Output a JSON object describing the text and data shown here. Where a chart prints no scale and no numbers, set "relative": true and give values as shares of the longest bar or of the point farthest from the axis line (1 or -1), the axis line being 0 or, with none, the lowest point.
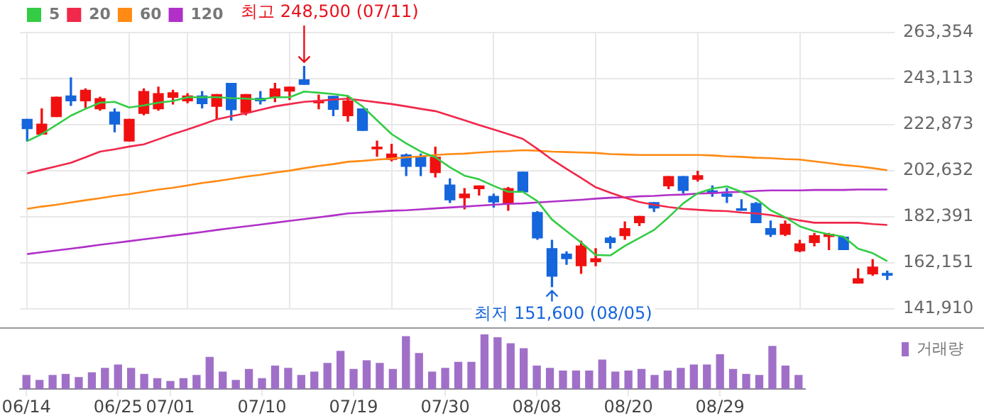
{
  "chart_data": [
    {
      "type": "candlestick",
      "ohlc": [
        [
          225200,
          225200,
          215600,
          221100
        ],
        [
          218700,
          229800,
          218700,
          223100
        ],
        [
          226400,
          234900,
          226400,
          234900
        ],
        [
          235500,
          243400,
          231300,
          233300
        ],
        [
          233300,
          238600,
          230400,
          238000
        ],
        [
          229800,
          234900,
          229200,
          234300
        ],
        [
          228400,
          229800,
          219700,
          223100
        ],
        [
          215600,
          225200,
          215600,
          225200
        ],
        [
          227800,
          238600,
          227200,
          237400
        ],
        [
          229800,
          239400,
          229200,
          236500
        ],
        [
          234900,
          238000,
          231900,
          236900
        ],
        [
          233300,
          236500,
          232500,
          235500
        ],
        [
          235500,
          237400,
          230200,
          232100
        ],
        [
          230900,
          236100,
          225200,
          236100
        ],
        [
          241000,
          241000,
          224800,
          229400
        ],
        [
          228200,
          236100,
          227200,
          236100
        ],
        [
          234500,
          237400,
          231900,
          233300
        ],
        [
          234900,
          241000,
          232900,
          238600
        ],
        [
          237600,
          239400,
          233900,
          239400
        ],
        [
          242600,
          248500,
          240600,
          240600
        ],
        [
          232500,
          235900,
          229800,
          233300
        ],
        [
          235300,
          235300,
          226800,
          229600
        ],
        [
          226800,
          235300,
          224400,
          233300
        ],
        [
          229800,
          229800,
          220300,
          220300
        ],
        [
          212200,
          215600,
          208900,
          213000
        ],
        [
          207500,
          214200,
          206900,
          209900
        ],
        [
          209500,
          209900,
          200400,
          204500
        ],
        [
          208900,
          209900,
          200400,
          204500
        ],
        [
          201800,
          213000,
          199800,
          208500
        ],
        [
          196300,
          199000,
          188600,
          189800
        ],
        [
          190700,
          194700,
          185800,
          192300
        ],
        [
          194700,
          195900,
          191900,
          195900
        ],
        [
          191300,
          192300,
          186600,
          188800
        ],
        [
          188200,
          195300,
          185200,
          194700
        ],
        [
          202000,
          202000,
          193300,
          193300
        ],
        [
          184200,
          184600,
          172400,
          173000
        ],
        [
          168300,
          172000,
          151600,
          156200
        ],
        [
          165900,
          166900,
          161400,
          163900
        ],
        [
          160800,
          171600,
          157400,
          169500
        ],
        [
          162600,
          168300,
          160800,
          163900
        ],
        [
          173000,
          173600,
          168500,
          171000
        ],
        [
          174000,
          180100,
          172400,
          177100
        ],
        [
          179700,
          182500,
          178500,
          182500
        ],
        [
          188600,
          188600,
          184600,
          186200
        ],
        [
          195900,
          200000,
          194700,
          200000
        ],
        [
          200000,
          200000,
          192700,
          193900
        ],
        [
          198800,
          202400,
          198000,
          200400
        ],
        [
          193700,
          195900,
          191300,
          192700
        ],
        [
          192300,
          194700,
          188600,
          191300
        ],
        [
          185800,
          189800,
          185200,
          185200
        ],
        [
          188200,
          188600,
          179700,
          179700
        ],
        [
          177100,
          180500,
          173600,
          174600
        ],
        [
          174600,
          180500,
          174000,
          179100
        ],
        [
          167300,
          172000,
          166900,
          170400
        ],
        [
          171000,
          175000,
          169500,
          174000
        ],
        [
          173600,
          175000,
          167900,
          174600
        ],
        [
          173400,
          173400,
          167900,
          167900
        ],
        [
          153100,
          159400,
          153100,
          155100
        ],
        [
          157200,
          163500,
          156600,
          160200
        ],
        [
          157400,
          158400,
          154700,
          156600
        ]
      ],
      "colors": [
        "#1565dc",
        "#f01010",
        "#f01010",
        "#1565dc",
        "#f01010",
        "#f01010",
        "#1565dc",
        "#f01010",
        "#f01010",
        "#f01010",
        "#f01010",
        "#f01010",
        "#1565dc",
        "#f01010",
        "#1565dc",
        "#f01010",
        "#1565dc",
        "#f01010",
        "#f01010",
        "#1565dc",
        "#f01010",
        "#1565dc",
        "#f01010",
        "#1565dc",
        "#f01010",
        "#f01010",
        "#1565dc",
        "#1565dc",
        "#f01010",
        "#1565dc",
        "#f01010",
        "#f01010",
        "#1565dc",
        "#f01010",
        "#1565dc",
        "#1565dc",
        "#1565dc",
        "#1565dc",
        "#f01010",
        "#f01010",
        "#1565dc",
        "#f01010",
        "#f01010",
        "#1565dc",
        "#f01010",
        "#1565dc",
        "#f01010",
        "#1565dc",
        "#1565dc",
        "#1565dc",
        "#1565dc",
        "#1565dc",
        "#f01010",
        "#f01010",
        "#f01010",
        "#f01010",
        "#1565dc",
        "#f01010",
        "#f01010",
        "#1565dc"
      ],
      "series": [
        {
          "name": "5",
          "type": "line",
          "color": "#33cc44",
          "values": [
            215600,
            218700,
            222700,
            226800,
            229800,
            232500,
            232900,
            230400,
            231300,
            232500,
            233300,
            234900,
            234900,
            234900,
            234500,
            234300,
            233900,
            234900,
            234900,
            237400,
            236900,
            236300,
            235500,
            230900,
            224800,
            218700,
            214600,
            211000,
            208500,
            204100,
            200400,
            198800,
            195900,
            193300,
            193300,
            189200,
            181100,
            176000,
            171000,
            165500,
            165300,
            169500,
            173000,
            176500,
            182100,
            188200,
            192700,
            194700,
            195700,
            193300,
            190300,
            185200,
            182100,
            178100,
            176000,
            174600,
            173600,
            168300,
            166300,
            162800
          ]
        },
        {
          "name": "20",
          "type": "line",
          "color": "#f0284a",
          "values": [
            201400,
            203000,
            204500,
            206100,
            208500,
            211000,
            212000,
            213200,
            214200,
            216400,
            218700,
            220700,
            222900,
            225200,
            226600,
            227800,
            229400,
            230900,
            231900,
            232900,
            233300,
            233900,
            234300,
            233500,
            232700,
            231900,
            230900,
            229800,
            228800,
            226800,
            224800,
            222700,
            220700,
            218700,
            216600,
            212200,
            207500,
            203400,
            199400,
            195300,
            192900,
            190700,
            188800,
            187600,
            186600,
            185800,
            185400,
            185000,
            184800,
            184200,
            183800,
            183100,
            181900,
            180700,
            179700,
            179700,
            179700,
            179700,
            179100,
            178700
          ]
        },
        {
          "name": "60",
          "type": "line",
          "color": "#ff8a14",
          "values": [
            185800,
            186800,
            187600,
            188600,
            189600,
            190500,
            191500,
            192300,
            193300,
            194300,
            195100,
            196100,
            197200,
            198000,
            199000,
            200000,
            200800,
            201800,
            202600,
            203700,
            204700,
            205500,
            206500,
            206900,
            207500,
            207900,
            208500,
            208900,
            209500,
            209900,
            210100,
            210600,
            211000,
            211200,
            211600,
            211400,
            211000,
            210800,
            210600,
            210400,
            209900,
            209700,
            209500,
            209500,
            209500,
            209500,
            209500,
            209300,
            208900,
            208700,
            208300,
            208100,
            207700,
            207500,
            206700,
            205900,
            205100,
            204500,
            203700,
            202800
          ]
        },
        {
          "name": "120",
          "type": "line",
          "color": "#b030c8",
          "values": [
            165900,
            166700,
            167500,
            168300,
            169100,
            170000,
            170800,
            171600,
            172400,
            173200,
            174000,
            174800,
            175600,
            176500,
            177300,
            178100,
            178900,
            179700,
            180500,
            181300,
            182100,
            182900,
            183800,
            184200,
            184600,
            185000,
            185200,
            185600,
            186000,
            186400,
            186800,
            187200,
            187600,
            188000,
            188200,
            188600,
            189000,
            189400,
            189800,
            190300,
            190700,
            190900,
            191300,
            191500,
            191900,
            192100,
            192500,
            192700,
            193100,
            193300,
            193700,
            193900,
            193900,
            193900,
            194100,
            194100,
            194100,
            194300,
            194300,
            194300
          ]
        }
      ],
      "ylim": [
        141910,
        263354
      ],
      "yticks": [
        {
          "value": 141910,
          "label": "141,910"
        },
        {
          "value": 162151,
          "label": "162,151"
        },
        {
          "value": 182391,
          "label": "182,391"
        },
        {
          "value": 202632,
          "label": "202,632"
        },
        {
          "value": 222873,
          "label": "222,873"
        },
        {
          "value": 243113,
          "label": "243,113"
        },
        {
          "value": 263354,
          "label": "263,354"
        }
      ],
      "grid": true,
      "legend": "top left",
      "tick_labels": "y",
      "annotations": [
        "최고 248,500 (07/11)",
        "최저 151,600 (08/05)"
      ]
    },
    {
      "type": "bar",
      "relative": true,
      "categories": [
        "06/14",
        null,
        null,
        null,
        null,
        null,
        null,
        "06/25",
        null,
        null,
        null,
        "07/01",
        null,
        null,
        null,
        null,
        null,
        null,
        "07/10",
        null,
        null,
        null,
        null,
        null,
        null,
        "07/19",
        null,
        null,
        null,
        null,
        null,
        null,
        "07/30",
        null,
        null,
        null,
        null,
        null,
        null,
        "08/08",
        null,
        null,
        null,
        null,
        null,
        null,
        "08/20",
        null,
        null,
        null,
        null,
        null,
        null,
        "08/29",
        null,
        null,
        null,
        null,
        null,
        null
      ],
      "series": [
        {
          "name": "거래량",
          "color": "#a070c8",
          "values": [
            0.25,
            0.16,
            0.25,
            0.27,
            0.21,
            0.3,
            0.38,
            0.44,
            0.38,
            0.27,
            0.19,
            0.14,
            0.19,
            0.25,
            0.58,
            0.31,
            0.16,
            0.36,
            0.19,
            0.42,
            0.38,
            0.25,
            0.31,
            0.47,
            0.69,
            0.36,
            0.52,
            0.47,
            0.36,
            0.96,
            0.65,
            0.31,
            0.38,
            0.49,
            0.49,
            1,
            0.94,
            0.83,
            0.74,
            0.42,
            0.38,
            0.33,
            0.33,
            0.33,
            0.53,
            0.31,
            0.33,
            0.36,
            0.25,
            0.33,
            0.38,
            0.44,
            0.44,
            0.63,
            0.36,
            0.27,
            0.25,
            0.78,
            0.42,
            0.25
          ]
        }
      ],
      "legend": "top right",
      "tick_labels": "x"
    }
  ]
}
